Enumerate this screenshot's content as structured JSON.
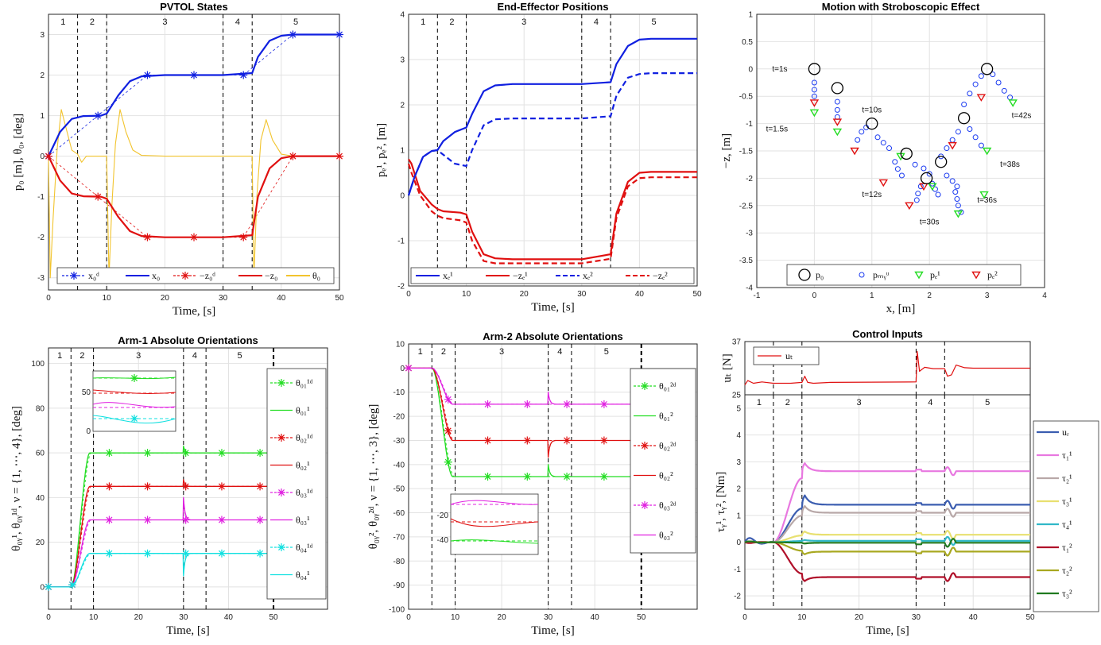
{
  "colors": {
    "blue": "#1020e0",
    "red": "#e01010",
    "yellow": "#f2c42e",
    "green": "#22dd22",
    "magenta": "#e020e0",
    "cyan": "#10e0e0",
    "ur": "#3b5db0",
    "tau11": "#e878e0",
    "tau12": "#b8a8a8",
    "tau13": "#e8e070",
    "tau14": "#30b8c8",
    "tau21": "#b0102a",
    "tau22": "#a8a820",
    "tau23": "#207a20",
    "grid": "#e2e2e2"
  },
  "chart_data": [
    {
      "id": "pvtol",
      "type": "line",
      "title": "PVTOL States",
      "xlabel": "Time, [s]",
      "ylabel": "p₀ [m],  θ₀,  [deg]",
      "xlim": [
        0,
        50
      ],
      "ylim": [
        -3.3,
        3.5
      ],
      "xticks": [
        "0",
        "10",
        "20",
        "30",
        "40",
        "50"
      ],
      "yticks": [
        "-3",
        "-2",
        "-1",
        "0",
        "1",
        "2",
        "3"
      ],
      "phase_lines": [
        5,
        10,
        30,
        35
      ],
      "phases": [
        "1",
        "2",
        "3",
        "4",
        "5"
      ],
      "legend": [
        "x₀ᵈ",
        "x₀",
        "−z₀ᵈ",
        "−z₀",
        "θ₀"
      ],
      "series": [
        {
          "name": "x₀ᵈ",
          "x": [
            0,
            8.5,
            17,
            25,
            33.5,
            42,
            50
          ],
          "y": [
            0,
            1,
            2,
            2,
            2,
            3,
            3
          ]
        },
        {
          "name": "x₀",
          "x": [
            0,
            2,
            4,
            6,
            9,
            10,
            12,
            14,
            16,
            20,
            30,
            35,
            36,
            38,
            40,
            42,
            50
          ],
          "y": [
            0,
            0.6,
            0.92,
            0.99,
            1.0,
            1.05,
            1.5,
            1.85,
            1.97,
            2.0,
            2.0,
            2.05,
            2.45,
            2.85,
            2.97,
            3.0,
            3.0
          ]
        },
        {
          "name": "−z₀ᵈ",
          "x": [
            0,
            8.5,
            17,
            25,
            33.5,
            42,
            50
          ],
          "y": [
            0,
            -1,
            -2,
            -2,
            -2,
            0,
            0
          ]
        },
        {
          "name": "−z₀",
          "x": [
            0,
            2,
            4,
            6,
            9,
            10,
            12,
            14,
            16,
            20,
            30,
            35,
            36,
            38,
            40,
            42,
            50
          ],
          "y": [
            0,
            -0.6,
            -0.92,
            -0.99,
            -1.0,
            -1.05,
            -1.5,
            -1.85,
            -1.97,
            -2.0,
            -2.0,
            -1.95,
            -1.0,
            -0.3,
            -0.05,
            0,
            0
          ]
        },
        {
          "name": "θ₀",
          "x": [
            0,
            0.3,
            0.8,
            1.5,
            2.2,
            3,
            4,
            5,
            5.7,
            6.5,
            7.5,
            9,
            10,
            10.4,
            10.9,
            11.5,
            12.3,
            13.3,
            14.5,
            16,
            20,
            30,
            35,
            35.3,
            35.8,
            36.5,
            37.4,
            38.5,
            40,
            42,
            50
          ],
          "y": [
            0,
            -3,
            -1.5,
            0.2,
            1.15,
            0.7,
            0.15,
            0.05,
            -0.15,
            0,
            0,
            0,
            0,
            -3,
            -1.2,
            0.3,
            1.15,
            0.6,
            0.15,
            0.02,
            0,
            0,
            0,
            -3,
            -1.0,
            0.4,
            0.9,
            0.4,
            0.05,
            0,
            0
          ]
        }
      ]
    },
    {
      "id": "endeff",
      "type": "line",
      "title": "End-Effector Positions",
      "xlabel": "Time, [s]",
      "ylabel": "pₑ¹, pₑ²,  [m]",
      "xlim": [
        0,
        50
      ],
      "ylim": [
        -2,
        4
      ],
      "xticks": [
        "0",
        "10",
        "20",
        "30",
        "40",
        "50"
      ],
      "yticks": [
        "-2",
        "-1",
        "0",
        "1",
        "2",
        "3",
        "4"
      ],
      "phase_lines": [
        5,
        10,
        30,
        35
      ],
      "phases": [
        "1",
        "2",
        "3",
        "4",
        "5"
      ],
      "legend": [
        "xₑ¹",
        "−zₑ¹",
        "xₑ²",
        "−zₑ²"
      ],
      "series": [
        {
          "name": "xₑ¹",
          "x": [
            0,
            1,
            2.5,
            4,
            5,
            6,
            8,
            10,
            11,
            13,
            15,
            18,
            30,
            35,
            36,
            38,
            40,
            42,
            50
          ],
          "y": [
            0,
            0.4,
            0.85,
            0.98,
            1.0,
            1.2,
            1.4,
            1.5,
            1.8,
            2.3,
            2.43,
            2.46,
            2.46,
            2.5,
            2.9,
            3.3,
            3.44,
            3.46,
            3.46
          ]
        },
        {
          "name": "−zₑ¹",
          "x": [
            0,
            0.5,
            2,
            4,
            5,
            6,
            9,
            10,
            11,
            13,
            15,
            18,
            30,
            35,
            36,
            38,
            40,
            42,
            50
          ],
          "y": [
            0.8,
            0.7,
            0.1,
            -0.2,
            -0.3,
            -0.35,
            -0.38,
            -0.42,
            -0.8,
            -1.3,
            -1.39,
            -1.41,
            -1.41,
            -1.3,
            -0.4,
            0.3,
            0.5,
            0.52,
            0.52
          ]
        },
        {
          "name": "xₑ²",
          "x": [
            0,
            1,
            2.5,
            4,
            5,
            6,
            8,
            10,
            11,
            13,
            15,
            18,
            30,
            35,
            36,
            38,
            40,
            42,
            50
          ],
          "y": [
            0,
            0.4,
            0.85,
            0.98,
            1.0,
            0.9,
            0.7,
            0.65,
            1.0,
            1.55,
            1.68,
            1.7,
            1.7,
            1.75,
            2.2,
            2.6,
            2.68,
            2.7,
            2.7
          ]
        },
        {
          "name": "−zₑ²",
          "x": [
            0,
            0.5,
            2,
            4,
            5,
            6,
            9,
            10,
            11,
            13,
            15,
            18,
            30,
            35,
            36,
            38,
            40,
            42,
            50
          ],
          "y": [
            0.7,
            0.5,
            0.0,
            -0.35,
            -0.45,
            -0.5,
            -0.55,
            -0.6,
            -1.0,
            -1.45,
            -1.5,
            -1.5,
            -1.5,
            -1.4,
            -0.5,
            0.2,
            0.38,
            0.4,
            0.4
          ]
        }
      ]
    },
    {
      "id": "strobe",
      "type": "scatter",
      "title": "Motion with Stroboscopic Effect",
      "xlabel": "x,  [m]",
      "ylabel": "−z,  [m]",
      "xlim": [
        -1,
        4
      ],
      "ylim": [
        -4,
        1
      ],
      "xticks": [
        "-1",
        "0",
        "1",
        "2",
        "3",
        "4"
      ],
      "yticks": [
        "-4",
        "-3.5",
        "-3",
        "-2.5",
        "-2",
        "-1.5",
        "-1",
        "-0.5",
        "0",
        "0.5",
        "1"
      ],
      "legend": [
        "p₀",
        "pₘᵧᵘ",
        "pₑ¹",
        "pₑ²"
      ],
      "annotations": [
        {
          "text": "t=1s",
          "x": -0.6,
          "y": 0
        },
        {
          "text": "t=1.5s",
          "x": -0.65,
          "y": -1.1
        },
        {
          "text": "t=10s",
          "x": 1.0,
          "y": -0.75
        },
        {
          "text": "t=12s",
          "x": 1.0,
          "y": -2.3
        },
        {
          "text": "t=30s",
          "x": 2.0,
          "y": -2.8
        },
        {
          "text": "t=36s",
          "x": 3.0,
          "y": -2.4
        },
        {
          "text": "t=38s",
          "x": 3.4,
          "y": -1.75
        },
        {
          "text": "t=42s",
          "x": 3.6,
          "y": -0.85
        }
      ],
      "bodies": [
        [
          0,
          0
        ],
        [
          0.4,
          -0.35
        ],
        [
          1.0,
          -1.0
        ],
        [
          1.6,
          -1.55
        ],
        [
          2.2,
          -1.7
        ],
        [
          1.95,
          -2.0
        ],
        [
          2.6,
          -0.9
        ],
        [
          3.0,
          0
        ]
      ],
      "arms": [
        [
          0.0,
          -0.25
        ],
        [
          0.0,
          -0.38
        ],
        [
          0.0,
          -0.5
        ],
        [
          0.4,
          -0.6
        ],
        [
          0.4,
          -0.75
        ],
        [
          0.4,
          -0.88
        ],
        [
          0.75,
          -1.3
        ],
        [
          0.82,
          -1.15
        ],
        [
          0.9,
          -1.07
        ],
        [
          1.1,
          -1.25
        ],
        [
          1.2,
          -1.35
        ],
        [
          1.3,
          -1.45
        ],
        [
          1.4,
          -1.7
        ],
        [
          1.45,
          -1.83
        ],
        [
          1.52,
          -1.95
        ],
        [
          1.75,
          -1.75
        ],
        [
          1.9,
          -1.82
        ],
        [
          2.0,
          -1.92
        ],
        [
          1.85,
          -2.15
        ],
        [
          1.8,
          -2.28
        ],
        [
          1.78,
          -2.4
        ],
        [
          2.05,
          -2.1
        ],
        [
          2.1,
          -2.2
        ],
        [
          2.15,
          -2.3
        ],
        [
          2.3,
          -1.95
        ],
        [
          2.4,
          -2.05
        ],
        [
          2.48,
          -2.15
        ],
        [
          2.45,
          -2.25
        ],
        [
          2.48,
          -2.38
        ],
        [
          2.5,
          -2.5
        ],
        [
          2.55,
          -2.62
        ],
        [
          2.2,
          -1.6
        ],
        [
          2.3,
          -1.45
        ],
        [
          2.4,
          -1.3
        ],
        [
          2.5,
          -1.15
        ],
        [
          2.7,
          -1.1
        ],
        [
          2.8,
          -1.25
        ],
        [
          2.9,
          -1.4
        ],
        [
          2.6,
          -0.65
        ],
        [
          2.7,
          -0.45
        ],
        [
          2.8,
          -0.28
        ],
        [
          2.9,
          -0.13
        ],
        [
          3.1,
          -0.1
        ],
        [
          3.2,
          -0.25
        ],
        [
          3.3,
          -0.4
        ],
        [
          3.4,
          -0.52
        ]
      ],
      "ee1": [
        [
          0.0,
          -0.8
        ],
        [
          0.4,
          -1.15
        ],
        [
          1.5,
          -1.6
        ],
        [
          2.05,
          -2.15
        ],
        [
          2.5,
          -2.65
        ],
        [
          2.95,
          -2.3
        ],
        [
          3.0,
          -1.5
        ],
        [
          3.45,
          -0.62
        ]
      ],
      "ee2": [
        [
          0.0,
          -0.62
        ],
        [
          0.4,
          -0.97
        ],
        [
          0.7,
          -1.5
        ],
        [
          1.2,
          -2.08
        ],
        [
          1.65,
          -2.5
        ],
        [
          1.9,
          -2.15
        ],
        [
          2.4,
          -1.4
        ],
        [
          2.9,
          -0.52
        ]
      ]
    },
    {
      "id": "arm1",
      "type": "line",
      "title": "Arm-1 Absolute Orientations",
      "xlabel": "Time, [s]",
      "ylabel": "θ₀ᵧ¹, θ₀ᵧ¹ᵈ,  ν = {1, ⋯, 4},  [deg]",
      "xlim": [
        0,
        62
      ],
      "ylim": [
        -10,
        107
      ],
      "xticks": [
        "0",
        "10",
        "20",
        "30",
        "40",
        "50"
      ],
      "yticks": [
        "0",
        "20",
        "40",
        "60",
        "80",
        "100"
      ],
      "phase_lines": [
        5,
        10,
        30,
        35,
        50
      ],
      "phases": [
        "1",
        "2",
        "3",
        "4",
        "5"
      ],
      "inset_ticks": [
        "50",
        "0"
      ],
      "legend": [
        "θ₀₁¹ᵈ",
        "θ₀₁¹",
        "θ₀₂¹ᵈ",
        "θ₀₂¹",
        "θ₀₃¹ᵈ",
        "θ₀₃¹",
        "θ₀₄¹ᵈ",
        "θ₀₄¹"
      ],
      "targets": [
        60,
        45,
        30,
        15
      ],
      "marker_x": [
        0,
        5.5,
        13.5,
        22,
        30.5,
        38.5,
        47
      ]
    },
    {
      "id": "arm2",
      "type": "line",
      "title": "Arm-2 Absolute Orientations",
      "xlabel": "Time, [s]",
      "ylabel": "θ₀ᵧ², θ₀ᵧ²ᵈ,  ν = {1, ⋯, 3},  [deg]",
      "xlim": [
        0,
        62
      ],
      "ylim": [
        -100,
        10
      ],
      "xticks": [
        "0",
        "10",
        "20",
        "30",
        "40",
        "50"
      ],
      "yticks": [
        "-100",
        "-90",
        "-80",
        "-70",
        "-60",
        "-50",
        "-40",
        "-30",
        "-20",
        "-10",
        "0",
        "10"
      ],
      "phase_lines": [
        5,
        10,
        30,
        35,
        50
      ],
      "phases": [
        "1",
        "2",
        "3",
        "4",
        "5"
      ],
      "inset_ticks": [
        "-20",
        "-40"
      ],
      "legend": [
        "θ₀₁²ᵈ",
        "θ₀₁²",
        "θ₀₂²ᵈ",
        "θ₀₂²",
        "θ₀₃²ᵈ",
        "θ₀₃²"
      ],
      "targets": [
        -45,
        -30,
        -15
      ],
      "marker_x": [
        0,
        8.5,
        17,
        25.5,
        34,
        42,
        50
      ]
    },
    {
      "id": "ut",
      "type": "line",
      "title": "Control Inputs",
      "ylabel": "uₜ [N]",
      "xlim": [
        0,
        50
      ],
      "ylim": [
        25,
        37
      ],
      "yticks": [
        "25",
        "37"
      ],
      "legend": [
        "uₜ"
      ],
      "series": [
        {
          "name": "uₜ",
          "x": [
            0,
            0.5,
            1.5,
            3,
            5,
            8,
            10,
            10.5,
            11,
            12,
            15,
            30,
            30.2,
            30.6,
            31.5,
            33,
            35,
            35.5,
            36.2,
            37,
            38.5,
            40,
            50
          ],
          "y": [
            27.2,
            28.2,
            27.6,
            27.9,
            27.6,
            27.6,
            27.8,
            29.2,
            27.8,
            27.6,
            27.8,
            27.9,
            34.8,
            30.3,
            31.2,
            30.9,
            30.9,
            29.2,
            29.5,
            31.7,
            31.1,
            31.0,
            31.0
          ]
        }
      ]
    },
    {
      "id": "torques",
      "type": "line",
      "xlabel": "Time, [s]",
      "ylabel": "τᵧ¹, τᵧ²,  [Nm]",
      "xlim": [
        0,
        50
      ],
      "ylim": [
        -2.5,
        5.5
      ],
      "xticks": [
        "0",
        "10",
        "20",
        "30",
        "40",
        "50"
      ],
      "yticks": [
        "-2",
        "-1",
        "0",
        "1",
        "2",
        "3",
        "4",
        "5"
      ],
      "phase_lines": [
        5,
        10,
        30,
        35
      ],
      "phases": [
        "1",
        "2",
        "3",
        "4",
        "5"
      ],
      "legend": [
        "uᵣ",
        "τ₁¹",
        "τ₂¹",
        "τ₃¹",
        "τ₄¹",
        "τ₁²",
        "τ₂²",
        "τ₃²"
      ],
      "finals": [
        1.4,
        2.65,
        1.1,
        0.28,
        0.05,
        -1.3,
        -0.35,
        -0.02
      ]
    }
  ]
}
